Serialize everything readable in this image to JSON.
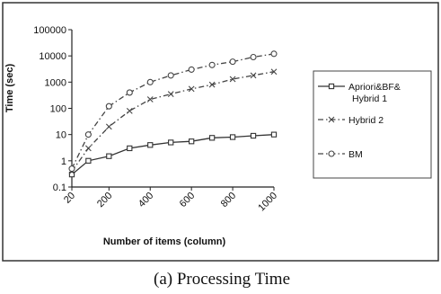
{
  "chart_data": {
    "type": "line",
    "title": "",
    "xlabel": "Number of items (column)",
    "ylabel": "Time (sec)",
    "y_scale": "log",
    "ylim": [
      0.1,
      100000
    ],
    "y_ticks": [
      "0.1",
      "1",
      "10",
      "100",
      "1000",
      "10000",
      "100000"
    ],
    "x_ticks": [
      "20",
      "200",
      "400",
      "600",
      "800",
      "1000"
    ],
    "x": [
      20,
      100,
      200,
      300,
      400,
      500,
      600,
      700,
      800,
      900,
      1000
    ],
    "grid": false,
    "legend_position": "right",
    "series": [
      {
        "name": "Apriori&BF&Hybrid 1",
        "color": "#333333",
        "marker": "square",
        "line_style": "solid",
        "values": [
          0.3,
          1,
          1.5,
          3,
          4,
          5,
          5.5,
          7.5,
          8,
          9,
          10
        ]
      },
      {
        "name": "Hybrid  2",
        "color": "#444444",
        "marker": "x",
        "line_style": "dash-dot",
        "values": [
          0.4,
          3,
          20,
          80,
          220,
          350,
          550,
          800,
          1300,
          1800,
          2500
        ]
      },
      {
        "name": "BM",
        "color": "#444444",
        "marker": "circle",
        "line_style": "dash-dot",
        "values": [
          0.5,
          10,
          120,
          400,
          1000,
          1800,
          3000,
          4500,
          6000,
          9000,
          12000
        ]
      }
    ]
  },
  "caption": "(a) Processing Time"
}
